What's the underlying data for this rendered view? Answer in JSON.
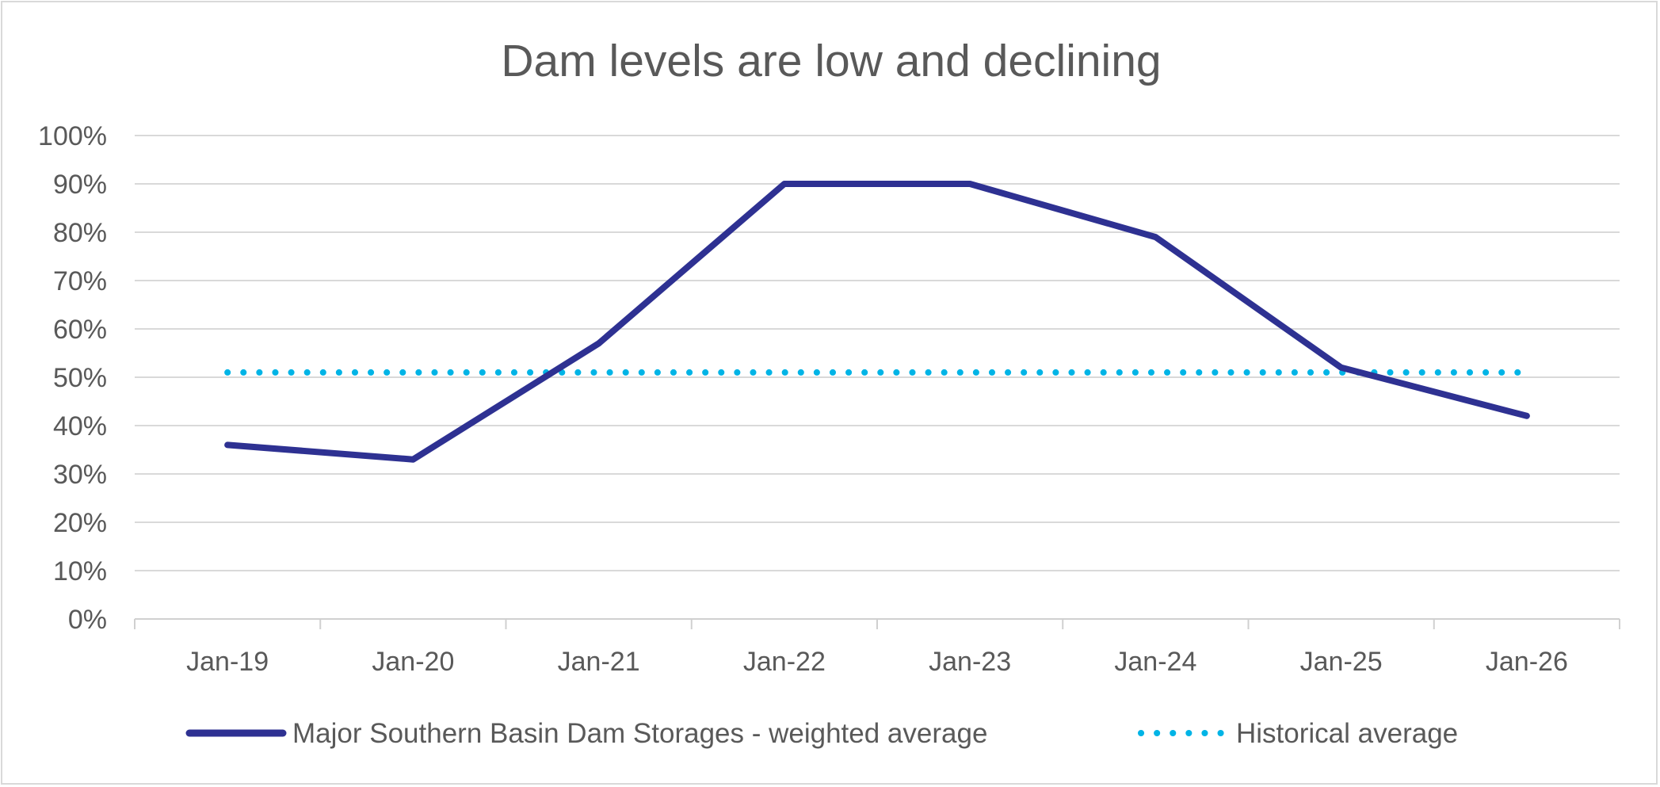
{
  "chart_data": {
    "type": "line",
    "title": "Dam levels are low and declining",
    "xlabel": "",
    "ylabel": "",
    "categories": [
      "Jan-19",
      "Jan-20",
      "Jan-21",
      "Jan-22",
      "Jan-23",
      "Jan-24",
      "Jan-25",
      "Jan-26"
    ],
    "y_ticks": [
      "0%",
      "10%",
      "20%",
      "30%",
      "40%",
      "50%",
      "60%",
      "70%",
      "80%",
      "90%",
      "100%"
    ],
    "ylim": [
      0,
      100
    ],
    "y_unit": "%",
    "grid": true,
    "legend_position": "bottom",
    "series": [
      {
        "name": "Major Southern Basin Dam Storages - weighted average",
        "values": [
          36,
          33,
          57,
          90,
          90,
          79,
          52,
          42
        ],
        "color": "#2e3192",
        "style": "solid"
      },
      {
        "name": "Historical average",
        "values": [
          51,
          51,
          51,
          51,
          51,
          51,
          51,
          51
        ],
        "color": "#00b4e6",
        "style": "dotted"
      }
    ]
  }
}
